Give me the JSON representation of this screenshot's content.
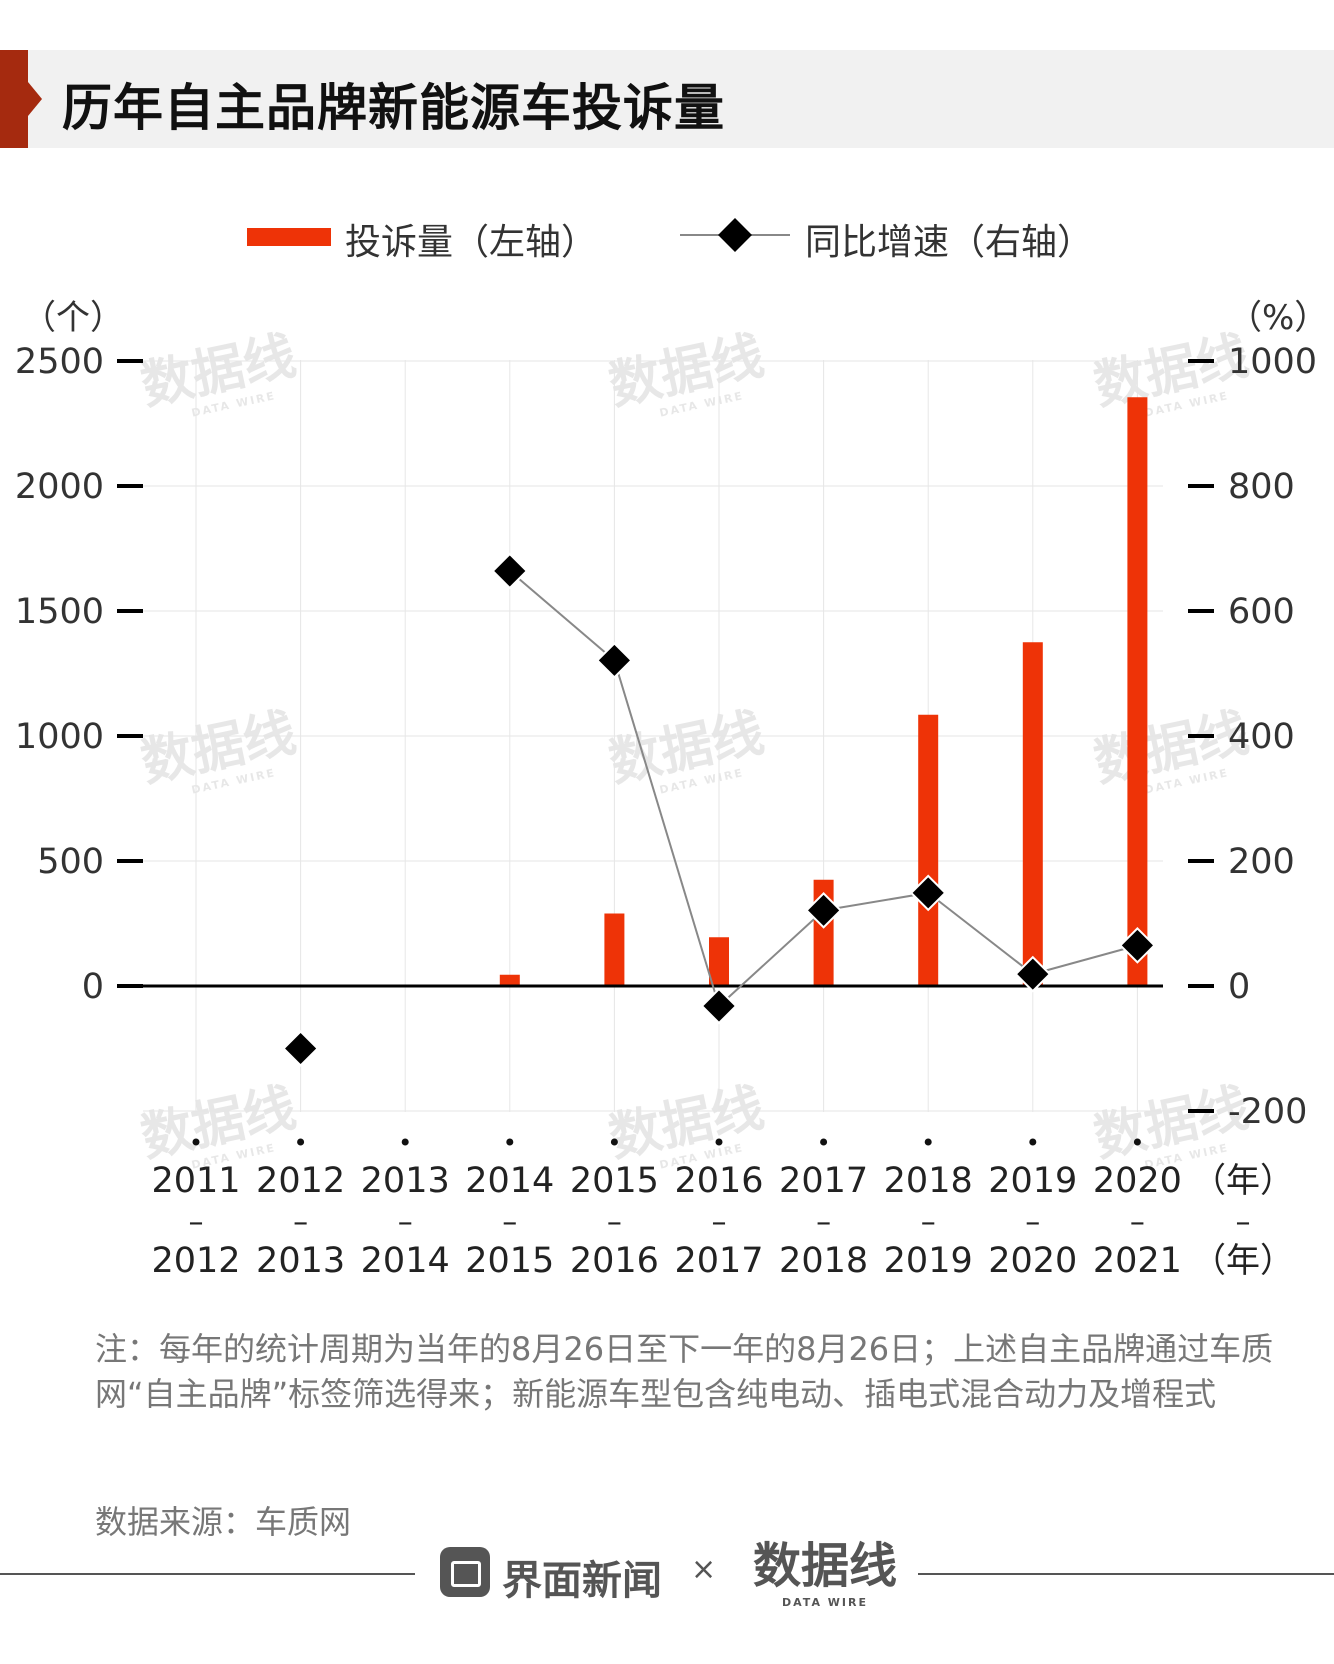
{
  "title": "历年自主品牌新能源车投诉量",
  "legend": {
    "bar_label": "投诉量（左轴）",
    "line_label": "同比增速（右轴）"
  },
  "left_unit": "（个）",
  "right_unit": "（%）",
  "x_unit_top": "（年）",
  "x_unit_dash": "–",
  "x_unit_bottom": "（年）",
  "colors": {
    "bar": "#ee3307",
    "line": "#888888",
    "marker": "#000000",
    "grid": "#e6e6e6",
    "accent": "#a52a0f"
  },
  "chart_data": {
    "type": "bar",
    "categories_top": [
      "2011",
      "2012",
      "2013",
      "2014",
      "2015",
      "2016",
      "2017",
      "2018",
      "2019",
      "2020"
    ],
    "categories_bottom": [
      "2012",
      "2013",
      "2014",
      "2015",
      "2016",
      "2017",
      "2018",
      "2019",
      "2020",
      "2021"
    ],
    "series": [
      {
        "name": "投诉量（左轴）",
        "type": "bar",
        "axis": "left",
        "values": [
          0,
          0,
          0,
          45,
          290,
          195,
          425,
          1085,
          1375,
          2355
        ]
      },
      {
        "name": "同比增速（右轴）",
        "type": "line",
        "axis": "right",
        "marker": "diamond",
        "values": [
          null,
          -100,
          null,
          664,
          521,
          -32,
          121,
          149,
          19,
          65
        ]
      }
    ],
    "left_ylim": [
      -500,
      2500
    ],
    "left_ticks": [
      "2500",
      "2000",
      "1500",
      "1000",
      "500",
      "0"
    ],
    "right_ylim": [
      -200,
      1000
    ],
    "right_ticks": [
      "1000",
      "800",
      "600",
      "400",
      "200",
      "0",
      "-200"
    ],
    "grid": true
  },
  "note": "注：每年的统计周期为当年的8月26日至下一年的8月26日；上述自主品牌通过车质网“自主品牌”标签筛选得来；新能源车型包含纯电动、插电式混合动力及增程式",
  "source": "数据来源：车质网",
  "footer": {
    "brand": "界面新闻",
    "separator": "×",
    "partner": "数据线",
    "partner_sub": "DATA WIRE"
  },
  "watermark": {
    "text": "数据线",
    "sub": "DATA WIRE"
  }
}
